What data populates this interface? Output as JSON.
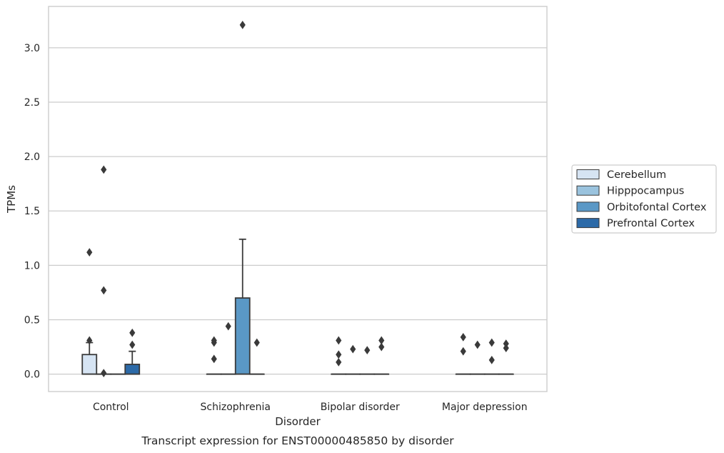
{
  "chart_data": {
    "type": "boxplot",
    "caption": "Transcript expression for ENST00000485850 by disorder",
    "xlabel": "Disorder",
    "ylabel": "TPMs",
    "ylim": [
      -0.16,
      3.38
    ],
    "yticks": [
      0.0,
      0.5,
      1.0,
      1.5,
      2.0,
      2.5,
      3.0
    ],
    "ytick_labels": [
      "0.0",
      "0.5",
      "1.0",
      "1.5",
      "2.0",
      "2.5",
      "3.0"
    ],
    "grid": "horizontal",
    "legend_position": "right-center",
    "categories": [
      "Control",
      "Schizophrenia",
      "Bipolar disorder",
      "Major depression"
    ],
    "series": [
      {
        "name": "Cerebellum",
        "color": "#d6e4f3",
        "boxes": [
          {
            "q1": 0.0,
            "median": 0.0,
            "q3": 0.18,
            "whisker_low": 0.0,
            "whisker_high": 0.29,
            "outliers": [
              0.31,
              1.12
            ]
          },
          {
            "q1": 0.0,
            "median": 0.0,
            "q3": 0.0,
            "whisker_low": 0.0,
            "whisker_high": 0.0,
            "outliers": [
              0.14,
              0.29,
              0.31
            ]
          },
          {
            "q1": 0.0,
            "median": 0.0,
            "q3": 0.0,
            "whisker_low": 0.0,
            "whisker_high": 0.0,
            "outliers": [
              0.11,
              0.18,
              0.31
            ]
          },
          {
            "q1": 0.0,
            "median": 0.0,
            "q3": 0.0,
            "whisker_low": 0.0,
            "whisker_high": 0.0,
            "outliers": [
              0.21,
              0.34
            ]
          }
        ]
      },
      {
        "name": "Hipppocampus",
        "color": "#9ac3de",
        "boxes": [
          {
            "q1": 0.0,
            "median": 0.0,
            "q3": 0.0,
            "whisker_low": 0.0,
            "whisker_high": 0.0,
            "outliers": [
              0.01,
              0.77,
              1.88
            ]
          },
          {
            "q1": 0.0,
            "median": 0.0,
            "q3": 0.0,
            "whisker_low": 0.0,
            "whisker_high": 0.0,
            "outliers": [
              0.44
            ]
          },
          {
            "q1": 0.0,
            "median": 0.0,
            "q3": 0.0,
            "whisker_low": 0.0,
            "whisker_high": 0.0,
            "outliers": [
              0.23
            ]
          },
          {
            "q1": 0.0,
            "median": 0.0,
            "q3": 0.0,
            "whisker_low": 0.0,
            "whisker_high": 0.0,
            "outliers": [
              0.27
            ]
          }
        ]
      },
      {
        "name": "Orbitofontal Cortex",
        "color": "#5a98c6",
        "boxes": [
          {
            "q1": 0.0,
            "median": 0.0,
            "q3": 0.0,
            "whisker_low": 0.0,
            "whisker_high": 0.0,
            "outliers": []
          },
          {
            "q1": 0.0,
            "median": 0.0,
            "q3": 0.7,
            "whisker_low": 0.0,
            "whisker_high": 1.24,
            "outliers": [
              3.21
            ]
          },
          {
            "q1": 0.0,
            "median": 0.0,
            "q3": 0.0,
            "whisker_low": 0.0,
            "whisker_high": 0.0,
            "outliers": [
              0.22
            ]
          },
          {
            "q1": 0.0,
            "median": 0.0,
            "q3": 0.0,
            "whisker_low": 0.0,
            "whisker_high": 0.0,
            "outliers": [
              0.13,
              0.29
            ]
          }
        ]
      },
      {
        "name": "Prefrontal Cortex",
        "color": "#2c6aa8",
        "boxes": [
          {
            "q1": 0.0,
            "median": 0.0,
            "q3": 0.09,
            "whisker_low": 0.0,
            "whisker_high": 0.21,
            "outliers": [
              0.27,
              0.38
            ]
          },
          {
            "q1": 0.0,
            "median": 0.0,
            "q3": 0.0,
            "whisker_low": 0.0,
            "whisker_high": 0.0,
            "outliers": [
              0.29
            ]
          },
          {
            "q1": 0.0,
            "median": 0.0,
            "q3": 0.0,
            "whisker_low": 0.0,
            "whisker_high": 0.0,
            "outliers": [
              0.25,
              0.31
            ]
          },
          {
            "q1": 0.0,
            "median": 0.0,
            "q3": 0.0,
            "whisker_low": 0.0,
            "whisker_high": 0.0,
            "outliers": [
              0.24,
              0.28
            ]
          }
        ]
      }
    ],
    "colors": {
      "grid": "#cccccc",
      "frame": "#cccccc",
      "line": "#3a3a3a"
    }
  }
}
